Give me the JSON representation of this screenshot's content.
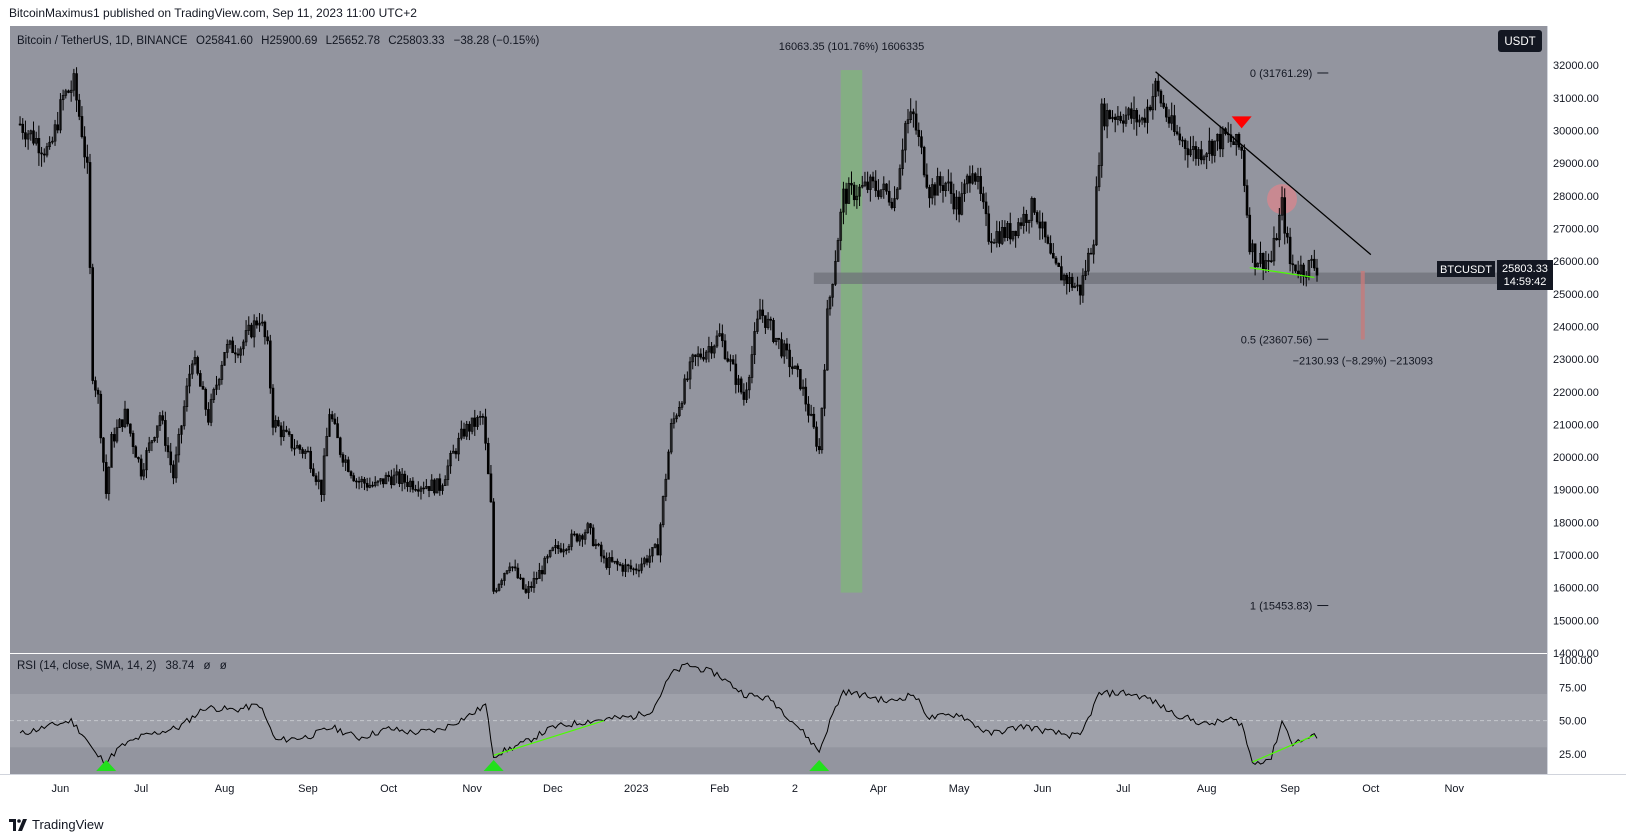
{
  "header": {
    "published_by": "BitcoinMaximus1 published on TradingView.com, Sep 11, 2023 11:00 UTC+2"
  },
  "footer": {
    "brand": "TradingView",
    "logo_icon": "tradingview-logo-icon"
  },
  "colors": {
    "plot_bg": "#93959f",
    "rsi_band": "#9fa1aa",
    "candle": "#000000",
    "trendline": "#000000",
    "green_zone": "#7fb77a",
    "red_marker": "#ff0000",
    "support_band": "#6f7179",
    "divergence": "#4cff00",
    "rsi_arrow": "#22e01c"
  },
  "chart_data": [
    {
      "type": "candlestick",
      "symbol_line": "Bitcoin / TetherUS, 1D, BINANCE",
      "ohlc": {
        "o_label": "O",
        "o": "25841.60",
        "h_label": "H",
        "h": "25900.69",
        "l_label": "L",
        "l": "25652.78",
        "c_label": "C",
        "c": "25803.33",
        "change": "−38.28 (−0.15%)"
      },
      "currency_button": "USDT",
      "price_tag": {
        "symbol": "BTCUSDT",
        "price": "25803.33",
        "countdown": "14:59:42"
      },
      "ylim": [
        14000,
        33200
      ],
      "y_ticks": [
        "32000.00",
        "31000.00",
        "30000.00",
        "29000.00",
        "28000.00",
        "27000.00",
        "26000.00",
        "25000.00",
        "24000.00",
        "23000.00",
        "22000.00",
        "21000.00",
        "20000.00",
        "19000.00",
        "18000.00",
        "17000.00",
        "16000.00",
        "15000.00",
        "14000.00"
      ],
      "x_ticks": [
        "Jun",
        "Jul",
        "Aug",
        "Sep",
        "Oct",
        "Nov",
        "Dec",
        "2023",
        "Feb",
        "2",
        "Apr",
        "May",
        "Jun",
        "Jul",
        "Aug",
        "Sep",
        "Oct",
        "Nov"
      ],
      "x_tick_dates": [
        "2022-06-01",
        "2022-07-01",
        "2022-08-01",
        "2022-09-01",
        "2022-10-01",
        "2022-11-01",
        "2022-12-01",
        "2023-01-01",
        "2023-02-01",
        "2023-03-01",
        "2023-04-01",
        "2023-05-01",
        "2023-06-01",
        "2023-07-01",
        "2023-08-01",
        "2023-09-01",
        "2023-10-01",
        "2023-11-01"
      ],
      "price_path": [
        [
          "2022-05-17",
          30200
        ],
        [
          "2022-05-22",
          29800
        ],
        [
          "2022-05-28",
          29300
        ],
        [
          "2022-06-02",
          31000
        ],
        [
          "2022-06-06",
          31400
        ],
        [
          "2022-06-09",
          30000
        ],
        [
          "2022-06-11",
          28700
        ],
        [
          "2022-06-13",
          22600
        ],
        [
          "2022-06-15",
          21800
        ],
        [
          "2022-06-18",
          18900
        ],
        [
          "2022-06-20",
          20500
        ],
        [
          "2022-06-25",
          21300
        ],
        [
          "2022-07-01",
          19600
        ],
        [
          "2022-07-08",
          21300
        ],
        [
          "2022-07-13",
          19400
        ],
        [
          "2022-07-20",
          23100
        ],
        [
          "2022-07-26",
          21200
        ],
        [
          "2022-08-01",
          23300
        ],
        [
          "2022-08-07",
          23400
        ],
        [
          "2022-08-14",
          24300
        ],
        [
          "2022-08-17",
          23300
        ],
        [
          "2022-08-19",
          21100
        ],
        [
          "2022-08-26",
          20400
        ],
        [
          "2022-09-01",
          20100
        ],
        [
          "2022-09-06",
          19000
        ],
        [
          "2022-09-09",
          21400
        ],
        [
          "2022-09-13",
          20200
        ],
        [
          "2022-09-19",
          19300
        ],
        [
          "2022-09-26",
          19100
        ],
        [
          "2022-10-01",
          19400
        ],
        [
          "2022-10-10",
          19200
        ],
        [
          "2022-10-20",
          19100
        ],
        [
          "2022-10-25",
          20100
        ],
        [
          "2022-10-29",
          20800
        ],
        [
          "2022-11-05",
          21200
        ],
        [
          "2022-11-08",
          18500
        ],
        [
          "2022-11-09",
          15900
        ],
        [
          "2022-11-15",
          16800
        ],
        [
          "2022-11-21",
          15800
        ],
        [
          "2022-12-01",
          17100
        ],
        [
          "2022-12-14",
          17800
        ],
        [
          "2022-12-20",
          16800
        ],
        [
          "2022-12-31",
          16550
        ],
        [
          "2023-01-09",
          17200
        ],
        [
          "2023-01-14",
          20900
        ],
        [
          "2023-01-22",
          22900
        ],
        [
          "2023-02-01",
          23700
        ],
        [
          "2023-02-10",
          21800
        ],
        [
          "2023-02-16",
          24500
        ],
        [
          "2023-02-25",
          23200
        ],
        [
          "2023-03-03",
          22300
        ],
        [
          "2023-03-10",
          20200
        ],
        [
          "2023-03-13",
          24300
        ],
        [
          "2023-03-19",
          28000
        ],
        [
          "2023-03-29",
          28300
        ],
        [
          "2023-04-02",
          28200
        ],
        [
          "2023-04-07",
          27900
        ],
        [
          "2023-04-11",
          30200
        ],
        [
          "2023-04-14",
          30400
        ],
        [
          "2023-04-20",
          28200
        ],
        [
          "2023-04-26",
          28400
        ],
        [
          "2023-05-01",
          27600
        ],
        [
          "2023-05-06",
          29000
        ],
        [
          "2023-05-12",
          26800
        ],
        [
          "2023-05-20",
          26900
        ],
        [
          "2023-05-29",
          27700
        ],
        [
          "2023-06-05",
          25800
        ],
        [
          "2023-06-15",
          25100
        ],
        [
          "2023-06-20",
          26800
        ],
        [
          "2023-06-23",
          30500
        ],
        [
          "2023-07-01",
          30500
        ],
        [
          "2023-07-08",
          30300
        ],
        [
          "2023-07-13",
          31300
        ],
        [
          "2023-07-20",
          29900
        ],
        [
          "2023-07-28",
          29300
        ],
        [
          "2023-08-08",
          29800
        ],
        [
          "2023-08-14",
          29400
        ],
        [
          "2023-08-17",
          26600
        ],
        [
          "2023-08-19",
          26100
        ],
        [
          "2023-08-25",
          26000
        ],
        [
          "2023-08-29",
          27700
        ],
        [
          "2023-09-01",
          25900
        ],
        [
          "2023-09-06",
          25750
        ],
        [
          "2023-09-09",
          25900
        ],
        [
          "2023-09-11",
          25803
        ]
      ],
      "annotations": {
        "green_range_label": "16063.35 (101.76%) 1606335",
        "green_range": {
          "x_start": "2023-03-18",
          "x_end": "2023-03-26",
          "y_low": 15850,
          "y_high": 31850
        },
        "fib_levels": [
          {
            "label": "0 (31761.29)",
            "value": 31761.29
          },
          {
            "label": "0.5 (23607.56)",
            "value": 23607.56
          },
          {
            "label": "1 (15453.83)",
            "value": 15453.83
          }
        ],
        "fib_x": "2023-09-10",
        "red_range_label": "−2130.93 (−8.29%) −213093",
        "red_range": {
          "x": "2023-09-28",
          "y_from": 25700,
          "y_to": 23600
        },
        "trendline": {
          "from": [
            "2023-07-13",
            31800
          ],
          "to": [
            "2023-10-01",
            26200
          ]
        },
        "support_zone": {
          "y_low": 25300,
          "y_high": 25650,
          "x_start": "2023-03-08"
        },
        "red_triangle": [
          "2023-08-14",
          30220
        ],
        "red_circle": [
          "2023-08-29",
          27900
        ],
        "price_divergence": {
          "from": [
            "2023-08-17",
            25800
          ],
          "to": [
            "2023-09-10",
            25500
          ]
        }
      }
    },
    {
      "type": "line",
      "indicator_label": "RSI (14, close, SMA, 14, 2)",
      "value_label": "38.74",
      "extra_labels": [
        "ø",
        "ø"
      ],
      "ylim": [
        10,
        100
      ],
      "y_ticks": [
        "100.00",
        "75.00",
        "50.00",
        "25.00"
      ],
      "band": [
        30,
        70
      ],
      "rsi_path": [
        [
          "2022-05-17",
          40
        ],
        [
          "2022-05-28",
          46
        ],
        [
          "2022-06-05",
          50
        ],
        [
          "2022-06-10",
          38
        ],
        [
          "2022-06-14",
          25
        ],
        [
          "2022-06-18",
          19
        ],
        [
          "2022-06-23",
          30
        ],
        [
          "2022-07-01",
          38
        ],
        [
          "2022-07-15",
          45
        ],
        [
          "2022-07-25",
          60
        ],
        [
          "2022-08-05",
          58
        ],
        [
          "2022-08-14",
          62
        ],
        [
          "2022-08-20",
          35
        ],
        [
          "2022-09-01",
          38
        ],
        [
          "2022-09-10",
          45
        ],
        [
          "2022-09-20",
          37
        ],
        [
          "2022-10-01",
          44
        ],
        [
          "2022-10-10",
          41
        ],
        [
          "2022-10-20",
          43
        ],
        [
          "2022-11-01",
          55
        ],
        [
          "2022-11-06",
          62
        ],
        [
          "2022-11-09",
          24
        ],
        [
          "2022-11-20",
          33
        ],
        [
          "2022-12-01",
          45
        ],
        [
          "2022-12-15",
          50
        ],
        [
          "2022-12-31",
          53
        ],
        [
          "2023-01-07",
          58
        ],
        [
          "2023-01-14",
          85
        ],
        [
          "2023-01-20",
          92
        ],
        [
          "2023-01-31",
          85
        ],
        [
          "2023-02-10",
          70
        ],
        [
          "2023-02-20",
          66
        ],
        [
          "2023-03-01",
          48
        ],
        [
          "2023-03-05",
          39
        ],
        [
          "2023-03-10",
          27
        ],
        [
          "2023-03-15",
          55
        ],
        [
          "2023-03-19",
          72
        ],
        [
          "2023-03-29",
          68
        ],
        [
          "2023-04-05",
          64
        ],
        [
          "2023-04-14",
          70
        ],
        [
          "2023-04-20",
          52
        ],
        [
          "2023-05-01",
          55
        ],
        [
          "2023-05-12",
          40
        ],
        [
          "2023-05-25",
          46
        ],
        [
          "2023-06-05",
          41
        ],
        [
          "2023-06-15",
          38
        ],
        [
          "2023-06-22",
          70
        ],
        [
          "2023-07-01",
          71
        ],
        [
          "2023-07-10",
          67
        ],
        [
          "2023-07-20",
          55
        ],
        [
          "2023-08-01",
          47
        ],
        [
          "2023-08-10",
          51
        ],
        [
          "2023-08-14",
          48
        ],
        [
          "2023-08-18",
          18
        ],
        [
          "2023-08-25",
          22
        ],
        [
          "2023-08-29",
          50
        ],
        [
          "2023-09-02",
          33
        ],
        [
          "2023-09-11",
          38.74
        ]
      ],
      "divergences": [
        {
          "from": [
            "2022-11-09",
            24
          ],
          "to": [
            "2022-12-20",
            50
          ]
        },
        {
          "from": [
            "2023-08-18",
            19
          ],
          "to": [
            "2023-09-10",
            39
          ]
        }
      ],
      "arrows": [
        "2022-06-18",
        "2022-11-09",
        "2023-03-10"
      ]
    }
  ]
}
